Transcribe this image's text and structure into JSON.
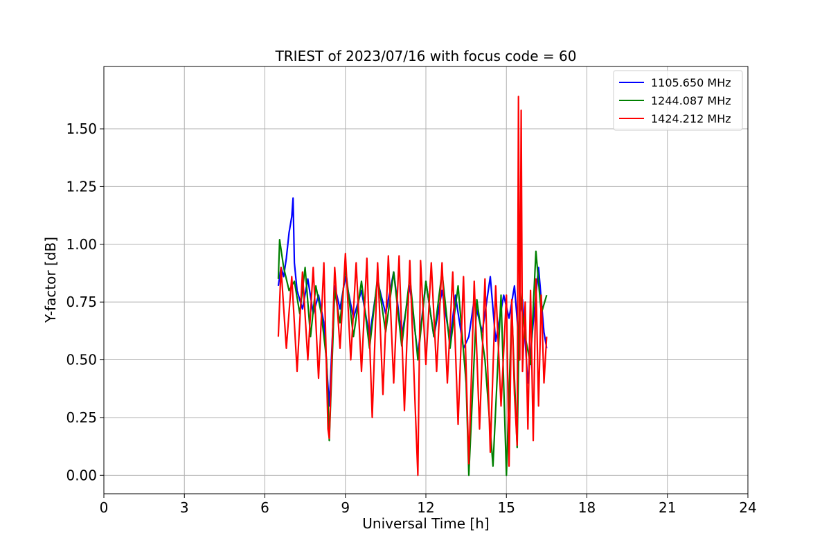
{
  "chart_data": {
    "type": "line",
    "title": "TRIEST of 2023/07/16 with focus code = 60",
    "xlabel": "Universal Time [h]",
    "ylabel": "Y-factor [dB]",
    "xlim": [
      0,
      24
    ],
    "ylim": [
      -0.08,
      1.77
    ],
    "xticks": [
      0,
      3,
      6,
      9,
      12,
      15,
      18,
      21,
      24
    ],
    "xtick_labels": [
      "0",
      "3",
      "6",
      "9",
      "12",
      "15",
      "18",
      "21",
      "24"
    ],
    "yticks": [
      0.0,
      0.25,
      0.5,
      0.75,
      1.0,
      1.25,
      1.5
    ],
    "ytick_labels": [
      "0.00",
      "0.25",
      "0.50",
      "0.75",
      "1.00",
      "1.25",
      "1.50"
    ],
    "grid": true,
    "legend_position": "top-right",
    "series": [
      {
        "name": "1105.650 MHz",
        "color": "#0000ff",
        "x": [
          6.5,
          6.6,
          6.7,
          6.8,
          6.9,
          7.0,
          7.05,
          7.1,
          7.2,
          7.4,
          7.6,
          7.8,
          8.0,
          8.2,
          8.4,
          8.6,
          8.8,
          9.0,
          9.3,
          9.6,
          9.9,
          10.2,
          10.5,
          10.8,
          11.1,
          11.4,
          11.7,
          12.0,
          12.3,
          12.6,
          12.9,
          13.1,
          13.4,
          13.6,
          13.8,
          14.1,
          14.4,
          14.6,
          14.9,
          15.1,
          15.3,
          15.45,
          15.5,
          15.6,
          15.8,
          16.0,
          16.2,
          16.4,
          16.5
        ],
        "y": [
          0.82,
          0.9,
          0.86,
          0.94,
          1.05,
          1.12,
          1.2,
          0.92,
          0.8,
          0.72,
          0.85,
          0.7,
          0.78,
          0.66,
          0.3,
          0.82,
          0.72,
          0.86,
          0.68,
          0.8,
          0.6,
          0.84,
          0.7,
          0.88,
          0.6,
          0.82,
          0.52,
          0.84,
          0.6,
          0.8,
          0.58,
          0.78,
          0.55,
          0.6,
          0.76,
          0.62,
          0.86,
          0.58,
          0.78,
          0.68,
          0.82,
          0.6,
          0.7,
          0.76,
          0.4,
          0.66,
          0.9,
          0.62,
          0.55
        ]
      },
      {
        "name": "1244.087 MHz",
        "color": "#008000",
        "x": [
          6.5,
          6.55,
          6.7,
          6.9,
          7.1,
          7.3,
          7.5,
          7.7,
          7.9,
          8.1,
          8.3,
          8.4,
          8.6,
          8.8,
          9.0,
          9.3,
          9.6,
          9.9,
          10.2,
          10.5,
          10.8,
          11.1,
          11.4,
          11.7,
          12.0,
          12.3,
          12.6,
          12.9,
          13.2,
          13.5,
          13.6,
          13.9,
          14.2,
          14.5,
          14.8,
          15.0,
          15.2,
          15.4,
          15.5,
          15.7,
          15.9,
          16.1,
          16.3,
          16.5
        ],
        "y": [
          0.85,
          1.02,
          0.9,
          0.8,
          0.84,
          0.7,
          0.9,
          0.6,
          0.82,
          0.7,
          0.5,
          0.15,
          0.8,
          0.66,
          0.9,
          0.6,
          0.84,
          0.55,
          0.86,
          0.62,
          0.88,
          0.56,
          0.86,
          0.5,
          0.84,
          0.6,
          0.88,
          0.55,
          0.82,
          0.4,
          0.0,
          0.76,
          0.5,
          0.04,
          0.78,
          0.0,
          0.72,
          0.12,
          0.8,
          0.6,
          0.48,
          0.97,
          0.7,
          0.78
        ]
      },
      {
        "name": "1424.212 MHz",
        "color": "#ff0000",
        "x": [
          6.5,
          6.6,
          6.8,
          7.0,
          7.2,
          7.4,
          7.6,
          7.8,
          8.0,
          8.2,
          8.35,
          8.4,
          8.6,
          8.8,
          9.0,
          9.2,
          9.4,
          9.6,
          9.8,
          10.0,
          10.2,
          10.4,
          10.6,
          10.8,
          11.0,
          11.2,
          11.4,
          11.6,
          11.7,
          11.8,
          12.0,
          12.2,
          12.4,
          12.6,
          12.8,
          13.0,
          13.2,
          13.4,
          13.6,
          13.8,
          14.0,
          14.2,
          14.4,
          14.6,
          14.8,
          15.0,
          15.1,
          15.2,
          15.3,
          15.4,
          15.45,
          15.5,
          15.55,
          15.6,
          15.7,
          15.8,
          15.9,
          16.0,
          16.1,
          16.2,
          16.3,
          16.4,
          16.5
        ],
        "y": [
          0.6,
          0.9,
          0.55,
          0.86,
          0.45,
          0.88,
          0.5,
          0.9,
          0.42,
          0.92,
          0.2,
          0.16,
          0.9,
          0.55,
          0.96,
          0.5,
          0.92,
          0.45,
          0.94,
          0.25,
          0.92,
          0.35,
          0.95,
          0.4,
          0.95,
          0.28,
          0.93,
          0.3,
          0.0,
          0.93,
          0.48,
          0.92,
          0.45,
          0.92,
          0.4,
          0.88,
          0.22,
          0.86,
          0.05,
          0.84,
          0.2,
          0.85,
          0.1,
          0.82,
          0.3,
          0.78,
          0.04,
          0.76,
          0.35,
          0.13,
          1.64,
          0.5,
          1.58,
          0.45,
          0.75,
          0.2,
          0.8,
          0.15,
          0.85,
          0.3,
          0.78,
          0.4,
          0.6
        ]
      }
    ]
  }
}
